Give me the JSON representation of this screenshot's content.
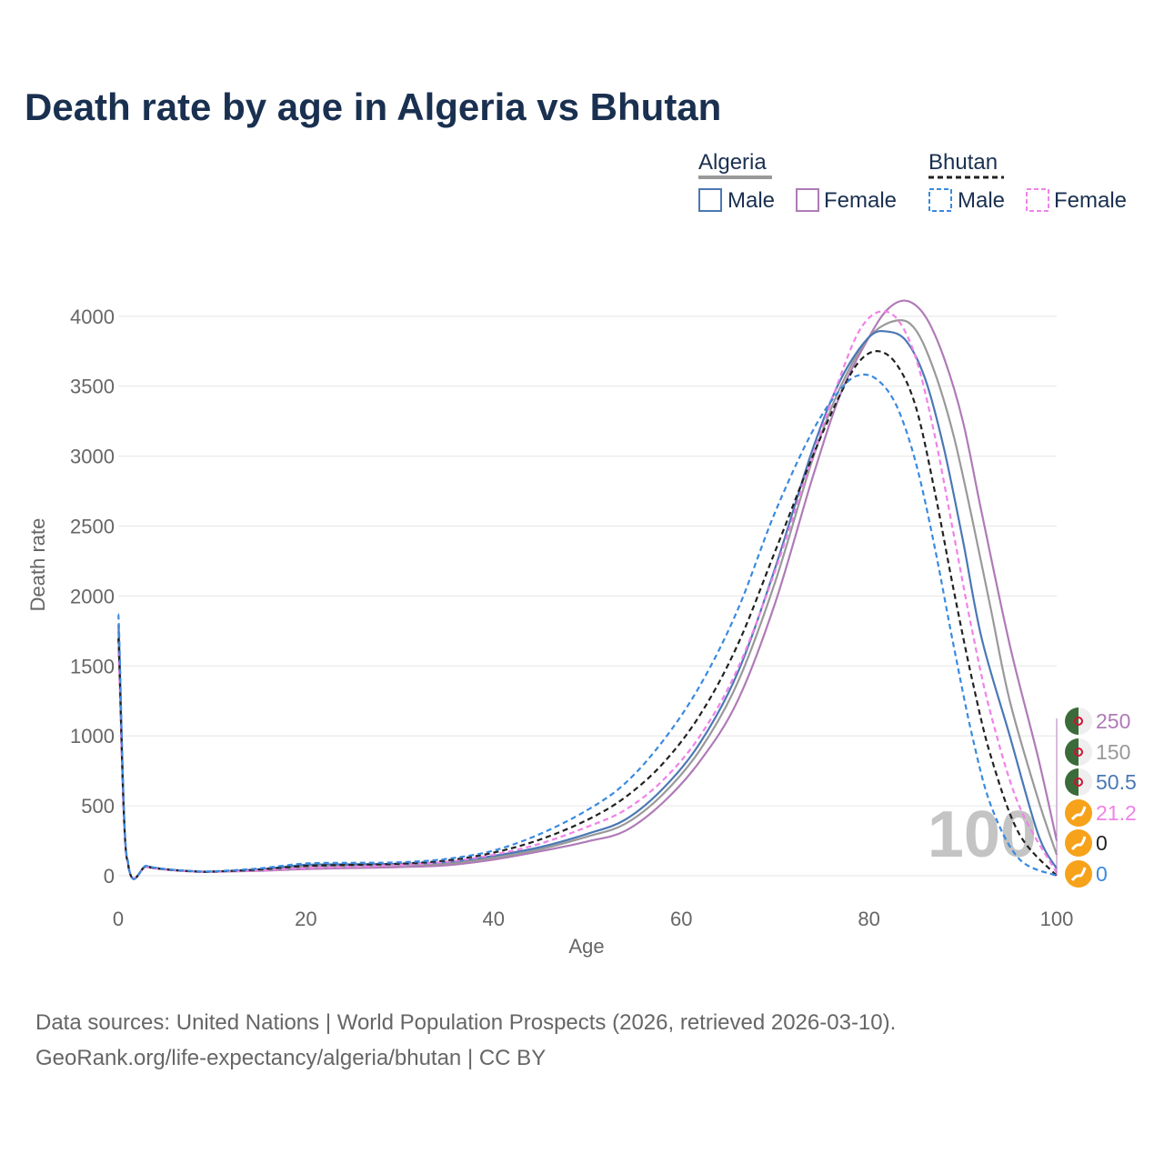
{
  "chart_data": {
    "type": "line",
    "title": "Death rate by age in Algeria vs Bhutan",
    "xlabel": "Age",
    "ylabel": "Death rate",
    "xlim": [
      0,
      100
    ],
    "ylim": [
      0,
      4200
    ],
    "x_ticks": [
      "0",
      "20",
      "40",
      "60",
      "80",
      "100"
    ],
    "y_ticks": [
      "0",
      "500",
      "1000",
      "1500",
      "2000",
      "2500",
      "3000",
      "3500",
      "4000"
    ],
    "legend": {
      "groups": [
        {
          "name": "Algeria",
          "items": [
            "Male",
            "Female"
          ]
        },
        {
          "name": "Bhutan",
          "items": [
            "Male",
            "Female"
          ]
        }
      ]
    },
    "current_age_label": "100",
    "series": [
      {
        "name": "Algeria Female",
        "country": "Algeria",
        "sex": "Female",
        "color": "#b07ab8",
        "dash": false,
        "end_value": "250",
        "x": [
          0,
          1,
          3,
          5,
          8,
          10,
          15,
          20,
          25,
          30,
          35,
          40,
          45,
          50,
          54,
          58,
          62,
          66,
          70,
          74,
          77,
          80,
          82,
          84,
          86,
          88,
          90,
          92,
          95,
          98,
          100
        ],
        "y": [
          1700,
          110,
          65,
          45,
          30,
          28,
          35,
          48,
          55,
          62,
          75,
          115,
          175,
          245,
          320,
          520,
          820,
          1250,
          1950,
          2850,
          3450,
          3850,
          4050,
          4110,
          4000,
          3700,
          3250,
          2600,
          1650,
          850,
          250
        ]
      },
      {
        "name": "Algeria Total",
        "country": "Algeria",
        "sex": "Total",
        "color": "#999999",
        "dash": false,
        "end_value": "150",
        "x": [
          0,
          1,
          3,
          5,
          8,
          10,
          15,
          20,
          25,
          30,
          35,
          40,
          45,
          50,
          54,
          58,
          62,
          66,
          70,
          74,
          77,
          80,
          83,
          85,
          87,
          89,
          91,
          93,
          95,
          98,
          100
        ],
        "y": [
          1750,
          112,
          66,
          46,
          31,
          29,
          40,
          62,
          70,
          76,
          88,
          128,
          190,
          280,
          370,
          580,
          900,
          1380,
          2100,
          2980,
          3500,
          3850,
          3970,
          3900,
          3600,
          3150,
          2550,
          1900,
          1250,
          550,
          150
        ]
      },
      {
        "name": "Algeria Male",
        "country": "Algeria",
        "sex": "Male",
        "color": "#4a78b5",
        "dash": false,
        "end_value": "50.5",
        "x": [
          0,
          1,
          3,
          5,
          8,
          10,
          15,
          20,
          25,
          30,
          35,
          40,
          45,
          50,
          54,
          58,
          62,
          66,
          70,
          74,
          77,
          80,
          82,
          84,
          86,
          88,
          90,
          92,
          95,
          98,
          100
        ],
        "y": [
          1800,
          115,
          68,
          47,
          32,
          30,
          45,
          78,
          82,
          85,
          98,
          142,
          205,
          300,
          400,
          620,
          950,
          1450,
          2200,
          3050,
          3550,
          3850,
          3890,
          3820,
          3550,
          3050,
          2400,
          1700,
          1000,
          300,
          50.5
        ]
      },
      {
        "name": "Bhutan Female",
        "country": "Bhutan",
        "sex": "Female",
        "color": "#f082e8",
        "dash": true,
        "end_value": "21.2",
        "x": [
          0,
          1,
          3,
          5,
          8,
          10,
          15,
          20,
          25,
          30,
          35,
          40,
          45,
          50,
          54,
          58,
          62,
          66,
          70,
          74,
          77,
          79,
          81,
          83,
          85,
          87,
          89,
          91,
          93,
          96,
          100
        ],
        "y": [
          1600,
          105,
          62,
          44,
          30,
          28,
          38,
          55,
          65,
          78,
          100,
          150,
          230,
          350,
          470,
          680,
          1000,
          1480,
          2180,
          3000,
          3580,
          3900,
          4030,
          3980,
          3700,
          3150,
          2450,
          1750,
          1150,
          500,
          21.2
        ]
      },
      {
        "name": "Bhutan Total",
        "country": "Bhutan",
        "sex": "Total",
        "color": "#222222",
        "dash": true,
        "end_value": "0",
        "x": [
          0,
          1,
          3,
          5,
          8,
          10,
          15,
          20,
          25,
          30,
          35,
          40,
          45,
          50,
          54,
          58,
          62,
          66,
          70,
          74,
          77,
          79,
          81,
          83,
          85,
          87,
          89,
          91,
          93,
          96,
          100
        ],
        "y": [
          1700,
          110,
          66,
          46,
          31,
          29,
          45,
          70,
          78,
          86,
          110,
          165,
          260,
          400,
          560,
          800,
          1150,
          1650,
          2320,
          3000,
          3450,
          3680,
          3750,
          3650,
          3350,
          2750,
          2050,
          1400,
          850,
          300,
          0
        ]
      },
      {
        "name": "Bhutan Male",
        "country": "Bhutan",
        "sex": "Male",
        "color": "#3a8ae0",
        "dash": true,
        "end_value": "0",
        "x": [
          0,
          1,
          3,
          5,
          8,
          10,
          15,
          20,
          25,
          30,
          35,
          40,
          45,
          50,
          54,
          58,
          62,
          66,
          70,
          74,
          77,
          79,
          81,
          83,
          85,
          87,
          89,
          91,
          93,
          96,
          100
        ],
        "y": [
          1870,
          120,
          70,
          48,
          33,
          31,
          52,
          88,
          92,
          96,
          120,
          180,
          300,
          470,
          660,
          960,
          1360,
          1900,
          2600,
          3180,
          3480,
          3580,
          3540,
          3350,
          2950,
          2350,
          1650,
          1000,
          500,
          120,
          0
        ]
      }
    ]
  },
  "footer": {
    "line1": "Data sources: United Nations | World Population Prospects (2026, retrieved 2026-03-10).",
    "line2": "GeoRank.org/life-expectancy/algeria/bhutan | CC BY"
  }
}
